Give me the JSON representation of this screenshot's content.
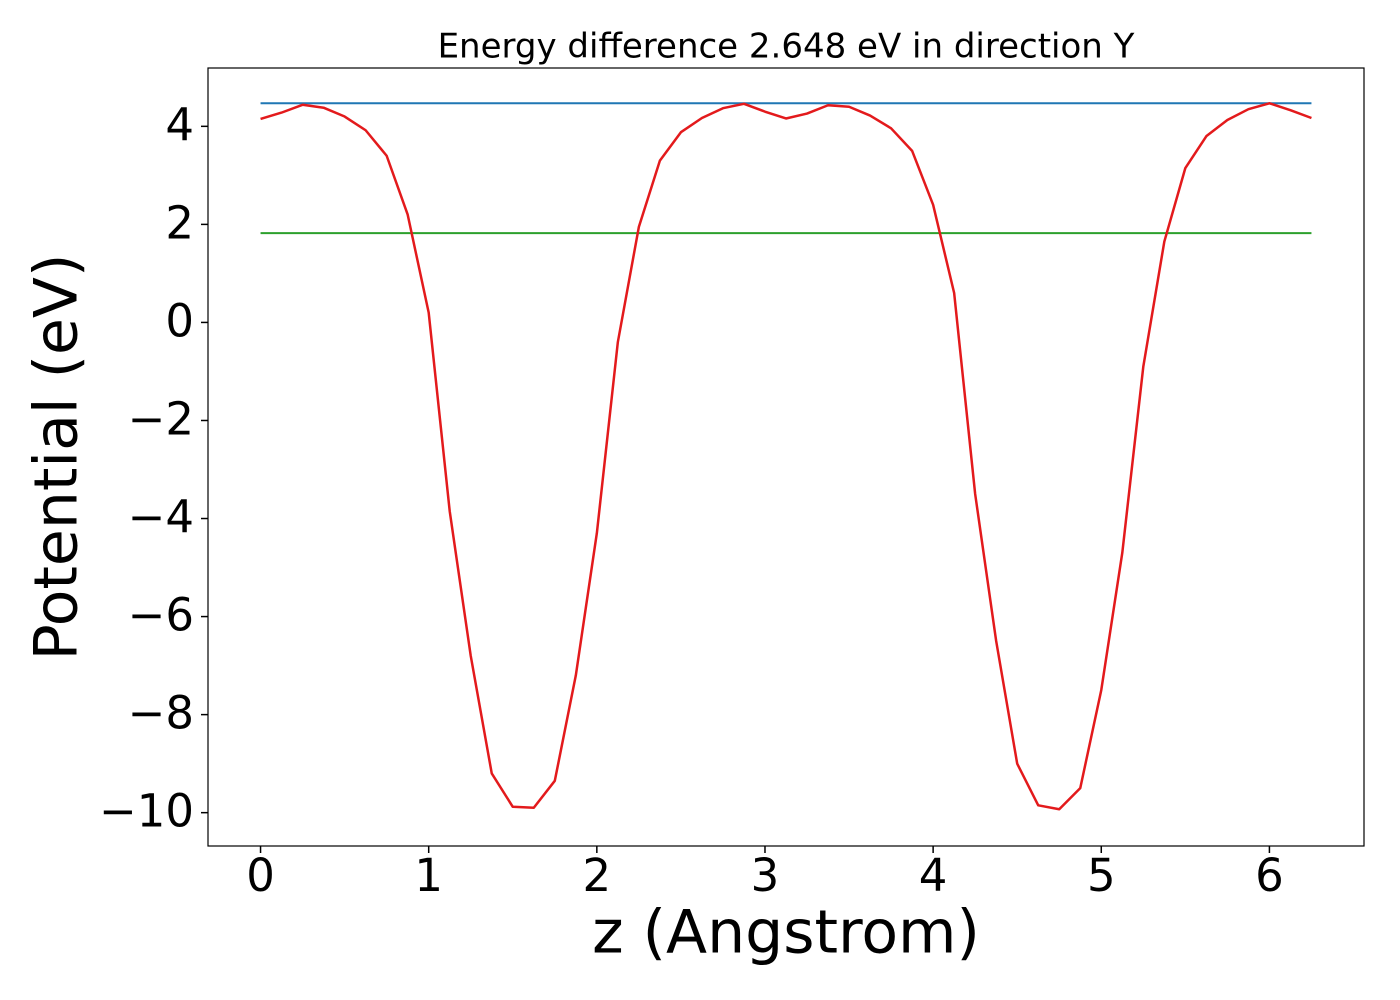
{
  "chart_data": {
    "type": "line",
    "title": "Energy difference 2.648 eV in direction Y",
    "xlabel": "z (Angstrom)",
    "ylabel": "Potential (eV)",
    "x": [
      0,
      0.125,
      0.25,
      0.375,
      0.5,
      0.625,
      0.75,
      0.875,
      1.0,
      1.125,
      1.25,
      1.375,
      1.5,
      1.625,
      1.75,
      1.875,
      2.0,
      2.125,
      2.25,
      2.375,
      2.5,
      2.625,
      2.75,
      2.875,
      3.0,
      3.125,
      3.25,
      3.375,
      3.5,
      3.625,
      3.75,
      3.875,
      4.0,
      4.125,
      4.25,
      4.375,
      4.5,
      4.625,
      4.75,
      4.875,
      5.0,
      5.125,
      5.25,
      5.375,
      5.5,
      5.625,
      5.75,
      5.875,
      6.0,
      6.125,
      6.25
    ],
    "series": [
      {
        "color": "#e31a1c",
        "values": [
          4.15,
          4.28,
          4.44,
          4.38,
          4.2,
          3.92,
          3.4,
          2.2,
          0.2,
          -3.85,
          -6.8,
          -9.2,
          -9.88,
          -9.9,
          -9.35,
          -7.2,
          -4.3,
          -0.4,
          1.95,
          3.3,
          3.88,
          4.17,
          4.37,
          4.46,
          4.3,
          4.16,
          4.26,
          4.43,
          4.4,
          4.22,
          3.96,
          3.5,
          2.4,
          0.6,
          -3.5,
          -6.5,
          -9.0,
          -9.85,
          -9.93,
          -9.5,
          -7.5,
          -4.7,
          -0.9,
          1.65,
          3.15,
          3.8,
          4.13,
          4.35,
          4.47,
          4.33,
          4.17
        ]
      }
    ],
    "hlines": [
      {
        "value": 4.47,
        "color": "#1f77b4"
      },
      {
        "value": 1.822,
        "color": "#2ca02c"
      }
    ],
    "xlim": [
      -0.3125,
      6.5625
    ],
    "ylim": [
      -10.68,
      5.19
    ],
    "xticks": [
      0,
      1,
      2,
      3,
      4,
      5,
      6
    ],
    "yticks": [
      {
        "value": -10,
        "label": "−10"
      },
      {
        "value": -8,
        "label": "−8"
      },
      {
        "value": -6,
        "label": "−6"
      },
      {
        "value": -4,
        "label": "−4"
      },
      {
        "value": -2,
        "label": "−2"
      },
      0,
      2,
      4
    ],
    "grid": false
  }
}
